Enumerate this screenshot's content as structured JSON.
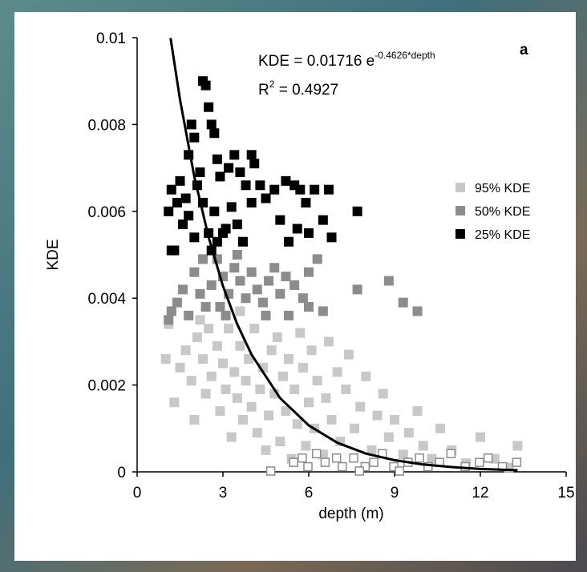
{
  "chart_data": {
    "type": "scatter",
    "panel_label": "a",
    "equation": {
      "text": "KDE = 0.01716 e",
      "exponent": "-0.4626*depth"
    },
    "r_squared": {
      "text": "R",
      "superscript": "2",
      "rest": " = 0.4927"
    },
    "xlabel": "depth (m)",
    "ylabel": "KDE",
    "xlim": [
      0,
      15
    ],
    "xticks": [
      0,
      3,
      6,
      9,
      12,
      15
    ],
    "ylim": [
      0,
      0.01
    ],
    "yticks": [
      0,
      0.002,
      0.004,
      0.006,
      0.008,
      0.01
    ],
    "grid": false,
    "legend": "right",
    "series": [
      {
        "name": "95% KDE",
        "color": "#c8c8c8",
        "marker": "filled",
        "x": [
          1.0,
          1.1,
          1.3,
          1.5,
          1.7,
          1.9,
          2.0,
          2.1,
          2.3,
          2.4,
          2.5,
          2.6,
          2.8,
          2.9,
          3.0,
          3.1,
          3.2,
          3.3,
          3.4,
          3.5,
          3.6,
          3.7,
          3.8,
          3.9,
          4.0,
          4.1,
          4.2,
          4.3,
          4.4,
          4.5,
          4.6,
          4.7,
          4.8,
          4.9,
          5.0,
          5.1,
          5.2,
          5.3,
          5.4,
          5.5,
          5.6,
          5.7,
          5.8,
          5.9,
          6.0,
          6.1,
          6.2,
          6.3,
          6.5,
          6.6,
          6.7,
          6.8,
          7.0,
          7.1,
          7.3,
          7.4,
          7.6,
          7.8,
          8.0,
          8.2,
          8.4,
          8.6,
          8.8,
          9.0,
          9.3,
          9.5,
          9.8,
          10.0,
          10.3,
          10.6,
          11.0,
          11.5,
          12.0,
          12.5,
          13.3,
          13.0,
          3.6,
          2.2
        ],
        "y": [
          0.0026,
          0.0034,
          0.0016,
          0.0024,
          0.0028,
          0.0021,
          0.0012,
          0.0031,
          0.0026,
          0.0018,
          0.0033,
          0.0022,
          0.0029,
          0.0014,
          0.0025,
          0.0019,
          0.0033,
          0.0008,
          0.0023,
          0.0017,
          0.0029,
          0.0012,
          0.0021,
          0.0026,
          0.0015,
          0.0033,
          0.0009,
          0.0019,
          0.0024,
          0.0005,
          0.0013,
          0.0028,
          0.0018,
          0.0031,
          0.0007,
          0.0022,
          0.0014,
          0.0026,
          0.0003,
          0.0019,
          0.0011,
          0.0032,
          0.0024,
          0.0006,
          0.0016,
          0.0028,
          0.001,
          0.0021,
          0.0004,
          0.0017,
          0.003,
          0.0012,
          0.0023,
          0.0007,
          0.0019,
          0.0027,
          0.001,
          0.0015,
          0.0022,
          0.0005,
          0.0013,
          0.0018,
          0.0008,
          0.0012,
          0.0004,
          0.0009,
          0.0014,
          0.0006,
          0.0003,
          0.001,
          0.0005,
          0.0002,
          0.0008,
          0.0003,
          0.0006,
          0.0001,
          0.0037,
          0.0035
        ]
      },
      {
        "name": "50% KDE",
        "color": "#8c8c8c",
        "marker": "filled",
        "x": [
          1.1,
          1.2,
          1.4,
          1.6,
          1.8,
          2.0,
          2.2,
          2.4,
          2.6,
          2.8,
          3.0,
          3.2,
          3.4,
          3.6,
          3.8,
          4.0,
          4.2,
          4.4,
          4.6,
          4.8,
          5.0,
          5.3,
          5.5,
          5.8,
          6.0,
          6.3,
          6.5,
          6.0,
          3.1,
          2.3,
          7.7,
          8.8,
          9.3,
          9.8,
          3.5,
          4.5,
          2.9,
          5.2
        ],
        "y": [
          0.0035,
          0.0037,
          0.0039,
          0.0042,
          0.0036,
          0.0046,
          0.0041,
          0.0038,
          0.0043,
          0.0049,
          0.0045,
          0.0041,
          0.0047,
          0.0044,
          0.004,
          0.0046,
          0.0042,
          0.0039,
          0.0044,
          0.0047,
          0.0041,
          0.0036,
          0.0043,
          0.004,
          0.0038,
          0.0049,
          0.0037,
          0.0046,
          0.0036,
          0.0049,
          0.0042,
          0.0044,
          0.0039,
          0.0037,
          0.005,
          0.0036,
          0.0038,
          0.0045
        ]
      },
      {
        "name": "25% KDE",
        "color": "#000000",
        "marker": "filled",
        "x": [
          1.1,
          1.2,
          1.3,
          1.2,
          1.4,
          1.5,
          1.6,
          1.7,
          1.8,
          1.9,
          2.0,
          2.1,
          2.2,
          2.3,
          2.4,
          2.5,
          2.6,
          2.7,
          2.8,
          2.9,
          2.7,
          2.5,
          2.6,
          2.8,
          3.0,
          3.1,
          3.2,
          3.4,
          3.3,
          3.5,
          3.6,
          3.8,
          4.0,
          4.1,
          4.0,
          4.3,
          4.5,
          4.8,
          5.0,
          5.2,
          5.5,
          5.7,
          5.9,
          6.0,
          6.2,
          6.5,
          6.7,
          6.8,
          5.6,
          7.7,
          2.0,
          1.8,
          2.3,
          3.7,
          5.3
        ],
        "y": [
          0.006,
          0.0051,
          0.0051,
          0.0065,
          0.0062,
          0.0067,
          0.0057,
          0.0063,
          0.0073,
          0.008,
          0.0077,
          0.0066,
          0.0069,
          0.009,
          0.0089,
          0.0084,
          0.008,
          0.0078,
          0.0072,
          0.0068,
          0.006,
          0.0055,
          0.0051,
          0.0053,
          0.0055,
          0.0056,
          0.007,
          0.0073,
          0.0061,
          0.0057,
          0.0069,
          0.0066,
          0.0073,
          0.0071,
          0.0062,
          0.0066,
          0.0063,
          0.0065,
          0.0058,
          0.0067,
          0.0066,
          0.0065,
          0.0062,
          0.0055,
          0.0065,
          0.0058,
          0.0065,
          0.0054,
          0.0056,
          0.006,
          0.0054,
          0.0059,
          0.0062,
          0.0053,
          0.0053
        ]
      },
      {
        "color": "#8c8c8c",
        "marker": "open",
        "x": [
          4.7,
          5.5,
          5.8,
          6.0,
          6.3,
          6.6,
          7.0,
          7.2,
          7.6,
          8.0,
          8.3,
          8.6,
          9.0,
          9.5,
          9.9,
          10.2,
          10.6,
          11.0,
          11.5,
          12.0,
          12.3,
          12.8,
          13.3,
          7.8,
          9.2
        ],
        "y": [
          0.0,
          0.0002,
          0.0003,
          0.0001,
          0.0004,
          0.0002,
          0.0003,
          0.0001,
          0.0003,
          0.0001,
          0.0002,
          0.0004,
          0.0001,
          0.0002,
          0.0003,
          0.0001,
          0.0002,
          0.0004,
          0.0001,
          0.0002,
          0.0003,
          0.0001,
          0.0002,
          0.0,
          0.0
        ]
      }
    ],
    "fit": {
      "color": "#000000",
      "x": [
        1.17,
        1.5,
        2,
        2.5,
        3,
        3.5,
        4,
        5,
        6,
        7,
        8,
        9,
        10,
        11,
        12,
        13.3
      ],
      "y": [
        0.00999,
        0.00857,
        0.0068,
        0.0054,
        0.00428,
        0.0034,
        0.0027,
        0.0017,
        0.00107,
        0.00067,
        0.00042,
        0.00027,
        0.00017,
        0.00011,
        6.7e-05,
        3.7e-05
      ]
    }
  }
}
